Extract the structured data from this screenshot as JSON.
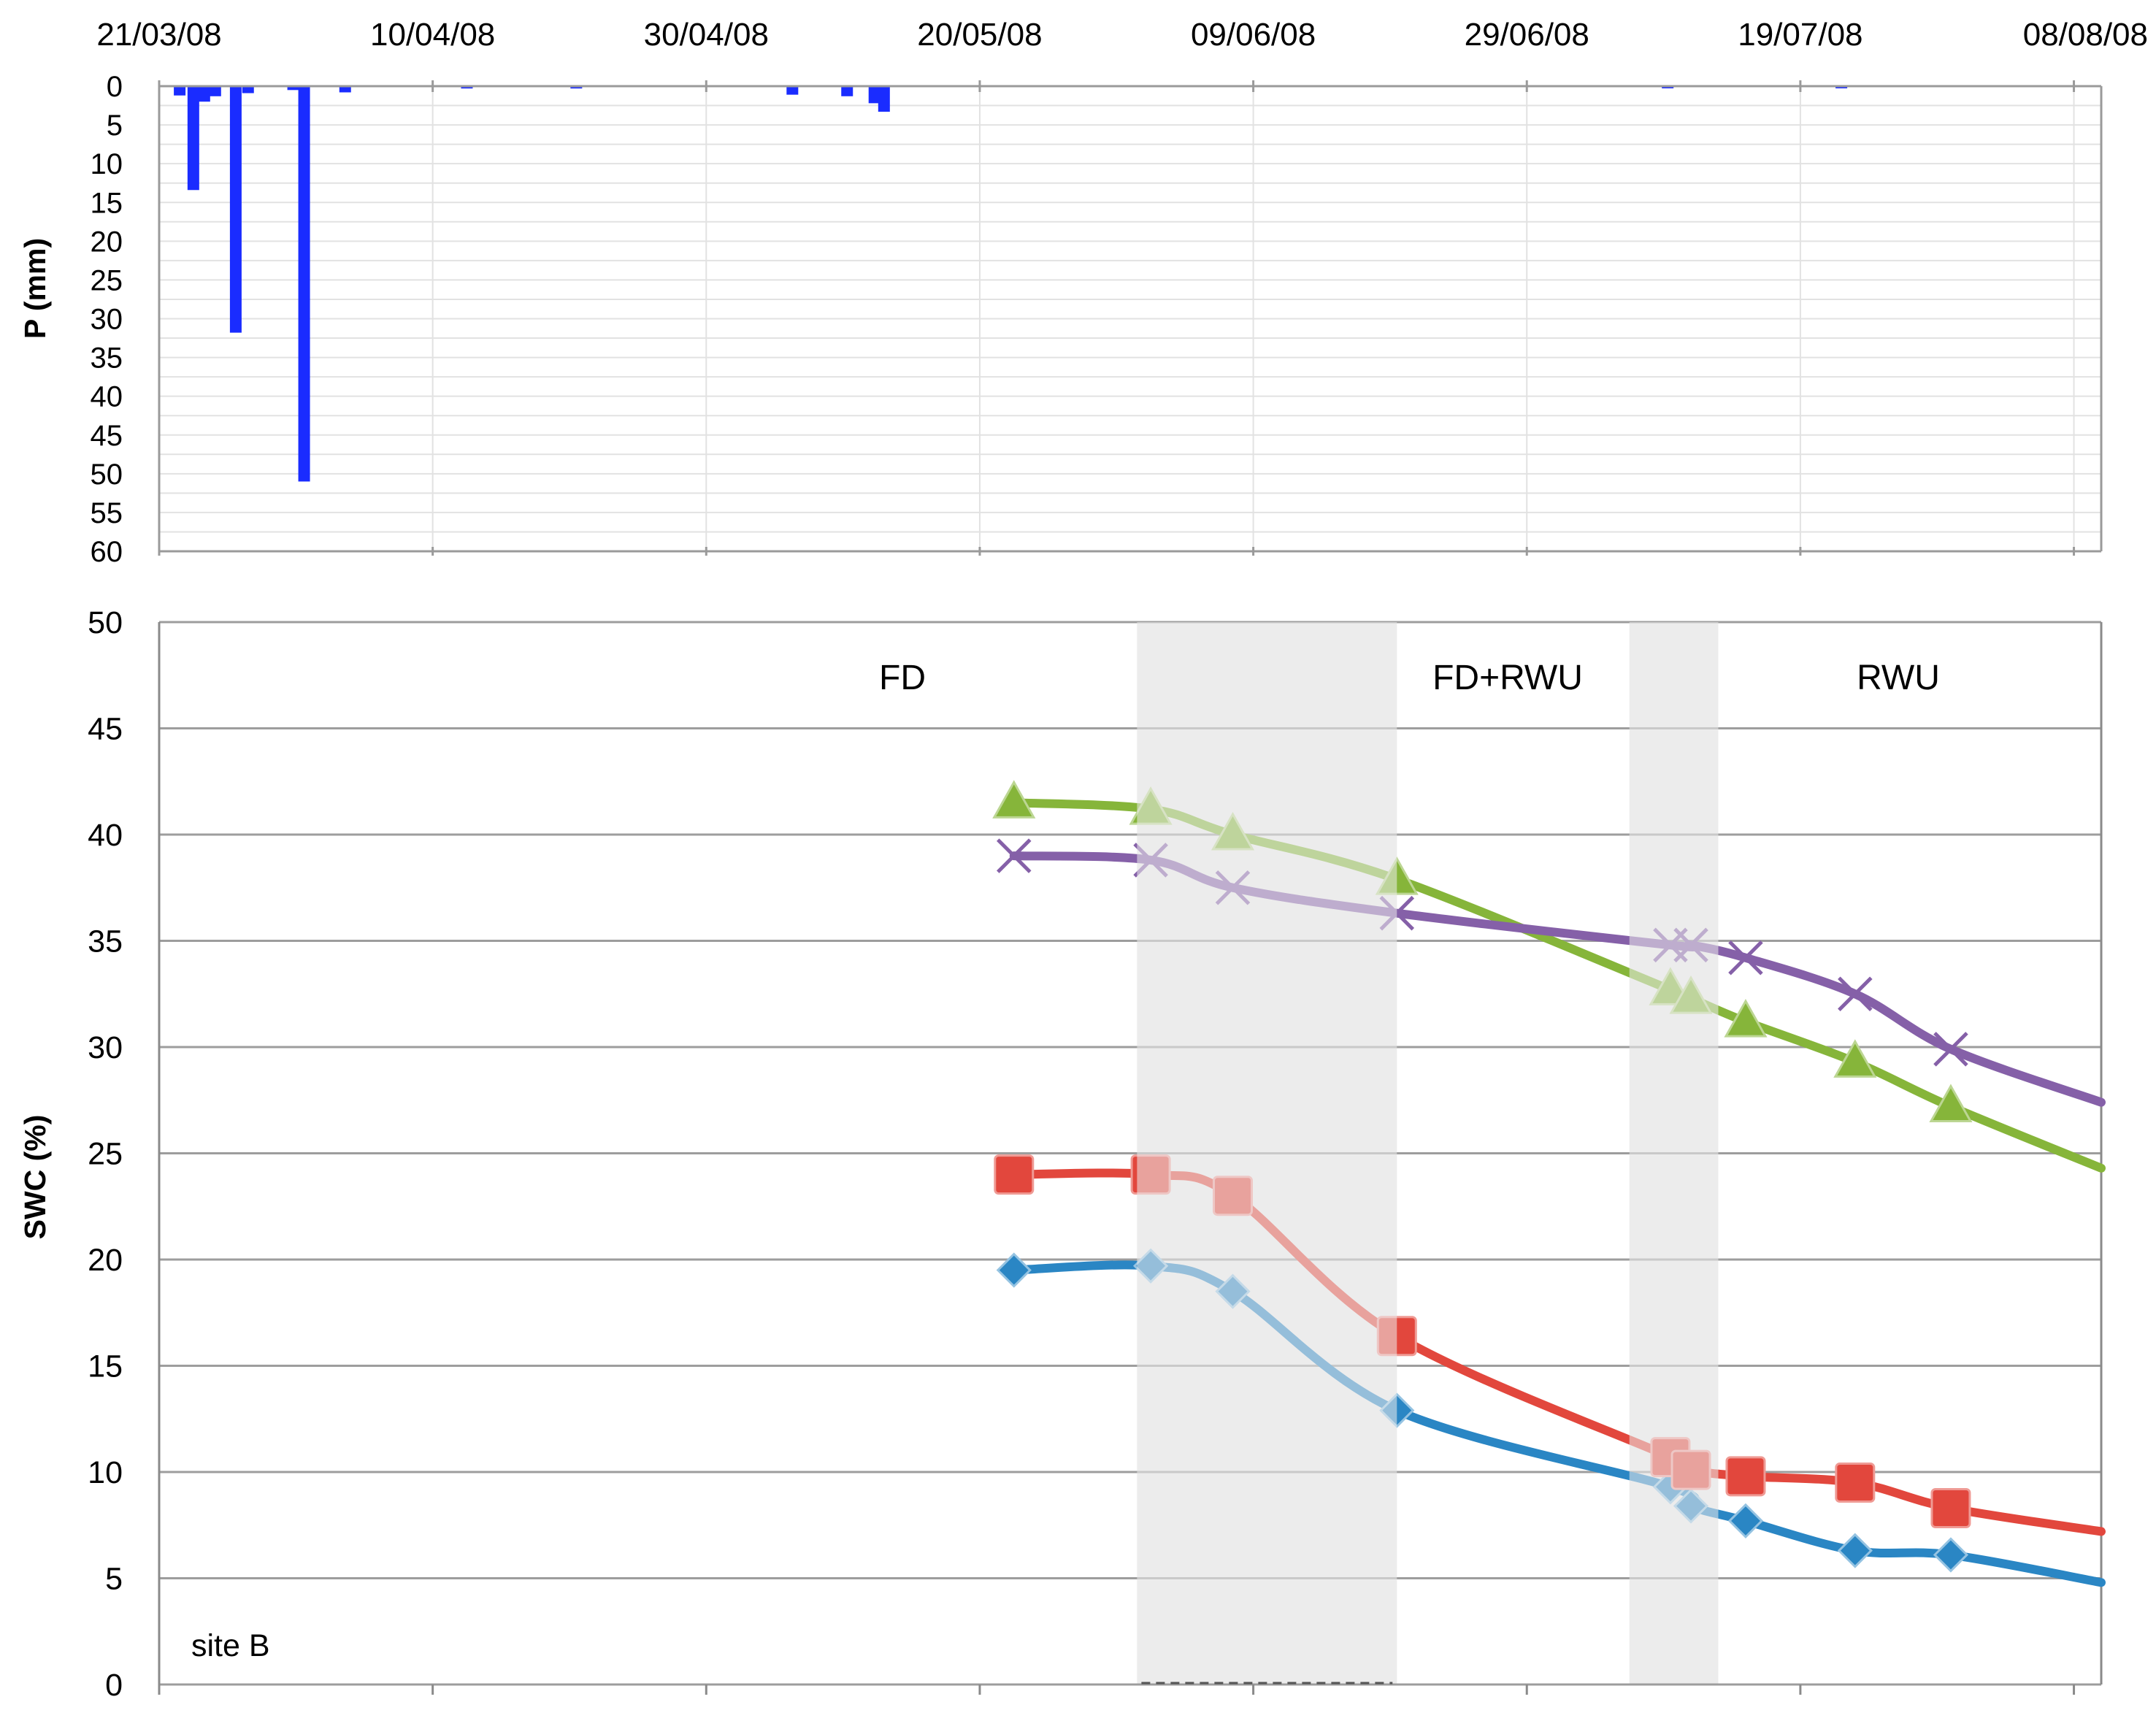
{
  "chart_data": [
    {
      "type": "bar",
      "ylabel": "P (mm)",
      "ylim": [
        0,
        60
      ],
      "y_ticks": [
        0,
        5,
        10,
        15,
        20,
        25,
        30,
        35,
        40,
        45,
        50,
        55,
        60
      ],
      "y_inverted": true,
      "x_tick_labels": [
        "21/03/08",
        "10/04/08",
        "30/04/08",
        "20/05/08",
        "09/06/08",
        "29/06/08",
        "19/07/08",
        "08/08/08"
      ],
      "x_range_days": [
        0,
        142
      ],
      "grid": true,
      "bar_color": "#1a2cff",
      "points": [
        {
          "day": 1.5,
          "value": 1.2
        },
        {
          "day": 2.5,
          "value": 13.4
        },
        {
          "day": 3.3,
          "value": 2.0
        },
        {
          "day": 4.1,
          "value": 1.3
        },
        {
          "day": 5.6,
          "value": 31.8
        },
        {
          "day": 6.5,
          "value": 0.9
        },
        {
          "day": 9.8,
          "value": 0.5
        },
        {
          "day": 10.6,
          "value": 51.0
        },
        {
          "day": 13.6,
          "value": 0.8
        },
        {
          "day": 22.5,
          "value": 0.3
        },
        {
          "day": 30.5,
          "value": 0.3
        },
        {
          "day": 46.3,
          "value": 1.1
        },
        {
          "day": 50.3,
          "value": 1.3
        },
        {
          "day": 52.3,
          "value": 2.2
        },
        {
          "day": 53.0,
          "value": 3.3
        },
        {
          "day": 110.3,
          "value": 0.2
        },
        {
          "day": 123.0,
          "value": 0.2
        }
      ]
    },
    {
      "type": "line",
      "ylabel": "SWC (%)",
      "ylim": [
        0,
        50
      ],
      "y_ticks": [
        0,
        5,
        10,
        15,
        20,
        25,
        30,
        35,
        40,
        45,
        50
      ],
      "x_range_days": [
        0,
        142
      ],
      "grid": true,
      "annotations": [
        "FD",
        "FD+RWU",
        "RWU",
        "site B"
      ],
      "shaded_periods_days": [
        [
          71.5,
          90.5
        ],
        [
          107.5,
          114
        ]
      ],
      "series": [
        {
          "marker": "diamond",
          "color": "#2a86c4",
          "x": [
            62.5,
            72.5,
            78.5,
            90.5,
            110.5,
            112,
            116,
            124,
            131,
            142
          ],
          "y": [
            19.5,
            19.7,
            18.5,
            12.9,
            9.3,
            8.4,
            7.7,
            6.3,
            6.1,
            4.8
          ]
        },
        {
          "marker": "square",
          "color": "#e2473d",
          "x": [
            62.5,
            72.5,
            78.5,
            90.5,
            110.5,
            112,
            116,
            124,
            131,
            142
          ],
          "y": [
            24.0,
            24.0,
            23.0,
            16.4,
            10.7,
            10.1,
            9.8,
            9.5,
            8.3,
            7.2
          ]
        },
        {
          "marker": "triangle",
          "color": "#86b53a",
          "x": [
            62.5,
            72.5,
            78.5,
            90.5,
            110.5,
            112,
            116,
            124,
            131,
            142
          ],
          "y": [
            41.5,
            41.2,
            40.0,
            37.9,
            32.7,
            32.3,
            31.2,
            29.3,
            27.2,
            24.3
          ]
        },
        {
          "marker": "x",
          "color": "#8560a8",
          "x": [
            62.5,
            72.5,
            78.5,
            90.5,
            110.5,
            112,
            116,
            124,
            131,
            142
          ],
          "y": [
            39.0,
            38.8,
            37.5,
            36.3,
            34.8,
            34.8,
            34.2,
            32.5,
            29.9,
            27.4
          ]
        }
      ]
    }
  ]
}
